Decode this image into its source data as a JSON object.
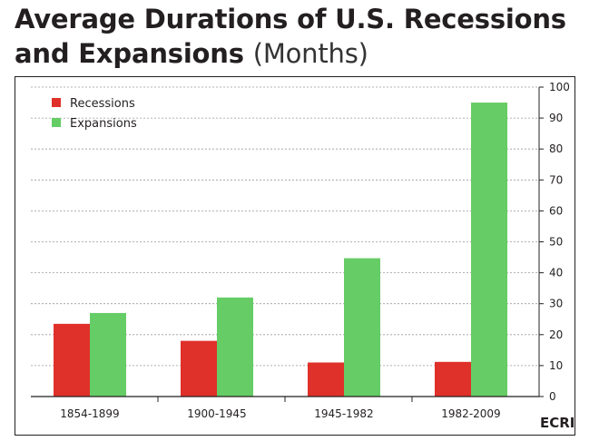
{
  "chart_data": {
    "type": "bar",
    "title": "Average Durations of U.S. Recessions",
    "title_line2": "and Expansions",
    "subtitle": "(Months)",
    "xlabel": "",
    "ylabel": "",
    "categories": [
      "1854-1899",
      "1900-1945",
      "1945-1982",
      "1982-2009"
    ],
    "series": [
      {
        "name": "Recessions",
        "color": "#e0302a",
        "values": [
          23.5,
          18,
          11,
          11.2
        ]
      },
      {
        "name": "Expansions",
        "color": "#66cc66",
        "values": [
          27,
          32,
          44.7,
          95
        ]
      }
    ],
    "ylim": [
      0,
      100
    ],
    "yticks": [
      0,
      10,
      20,
      30,
      40,
      50,
      60,
      70,
      80,
      90,
      100
    ],
    "y_axis_side": "right",
    "grid": "horizontal-dashed",
    "legend_position": "top-left",
    "source": "ECRI"
  }
}
